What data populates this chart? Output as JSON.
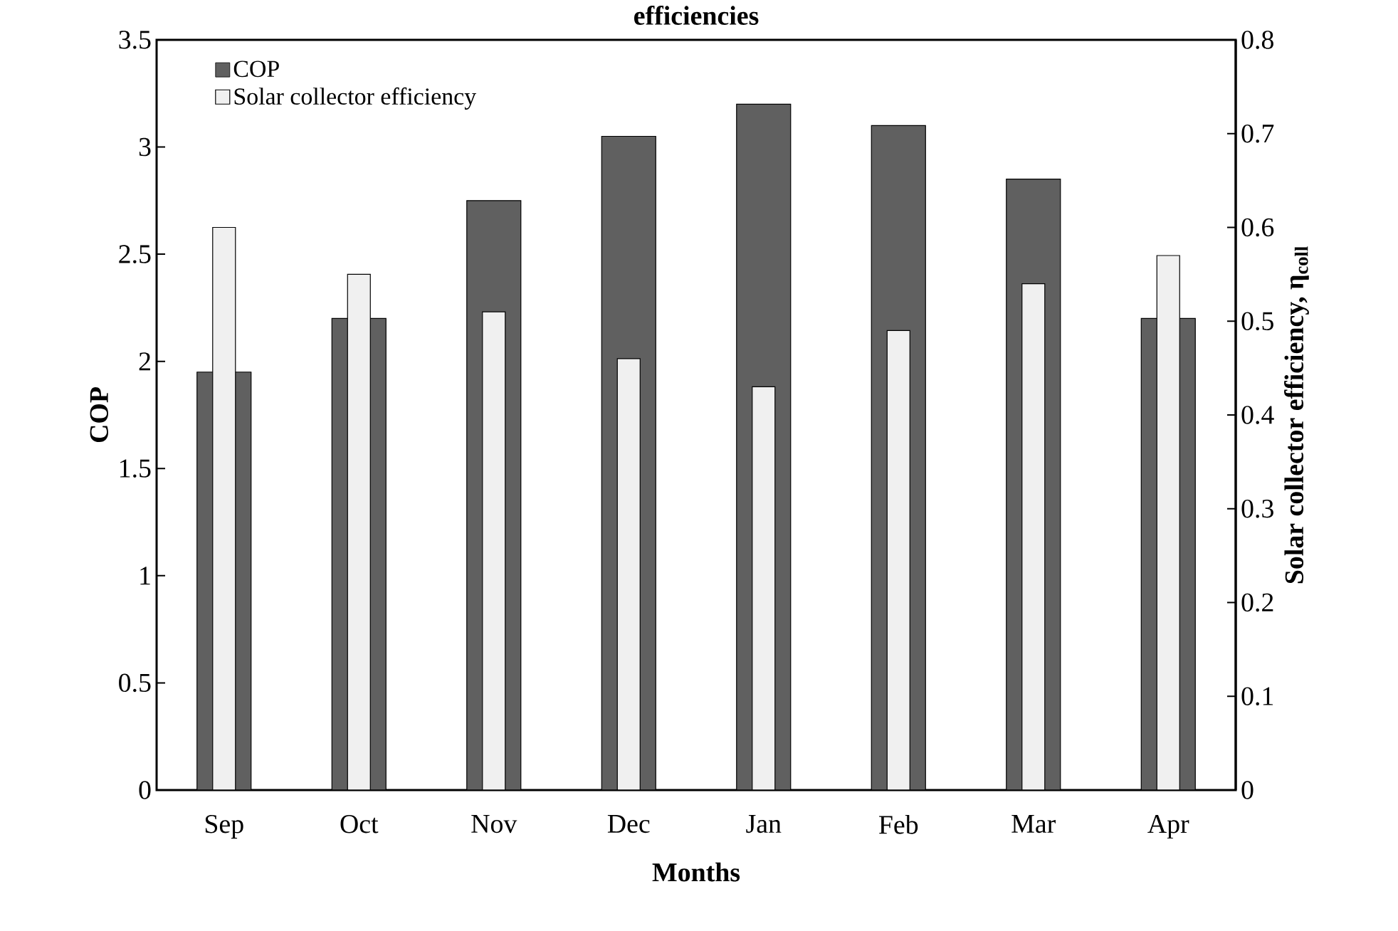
{
  "chart_data": {
    "type": "bar",
    "title": "efficiencies",
    "xlabel": "Months",
    "ylabel": "COP",
    "y2label": "Solar collector efficiency, η$_{coll}$",
    "categories": [
      "Sep",
      "Oct",
      "Nov",
      "Dec",
      "Jan",
      "Feb",
      "Mar",
      "Apr"
    ],
    "series": [
      {
        "name": "COP",
        "color": "#606060",
        "values": [
          1.95,
          2.2,
          2.75,
          3.05,
          3.2,
          3.1,
          2.85,
          2.2
        ]
      },
      {
        "name": "Solar collector efficiency",
        "color": "#f0f0f0",
        "axis": "y2",
        "values": [
          0.6,
          0.55,
          0.51,
          0.46,
          0.43,
          0.49,
          0.54,
          0.57
        ]
      }
    ],
    "ylim": [
      0,
      3.5
    ],
    "yticks": [
      0,
      0.5,
      1,
      1.5,
      2,
      2.5,
      3,
      3.5
    ],
    "y2lim": [
      0,
      0.8
    ],
    "y2ticks": [
      0,
      0.1,
      0.2,
      0.3,
      0.4,
      0.5,
      0.6,
      0.7,
      0.8
    ],
    "legend": "top left",
    "grid": false
  }
}
